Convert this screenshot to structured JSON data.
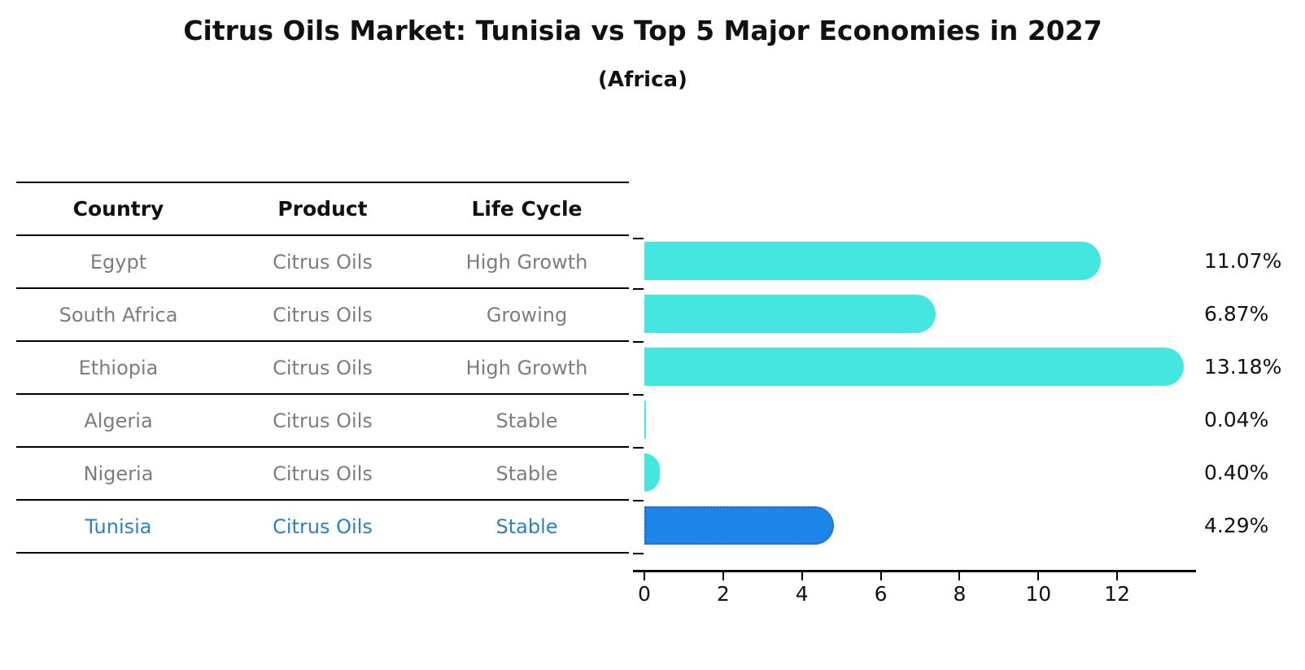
{
  "chart_data": {
    "type": "bar",
    "orientation": "horizontal",
    "title": "Citrus Oils Market: Tunisia vs Top 5 Major Economies in 2027",
    "subtitle": "(Africa)",
    "categories": [
      "Egypt",
      "South Africa",
      "Ethiopia",
      "Algeria",
      "Nigeria",
      "Tunisia"
    ],
    "values": [
      11.07,
      6.87,
      13.18,
      0.04,
      0.4,
      4.29
    ],
    "value_labels": [
      "11.07%",
      "6.87%",
      "13.18%",
      "0.04%",
      "0.40%",
      "4.29%"
    ],
    "xlabel": "",
    "ylabel": "",
    "xticks": [
      0,
      2,
      4,
      6,
      8,
      10,
      12
    ],
    "xtick_labels": [
      "0",
      "2",
      "4",
      "6",
      "8",
      "10",
      "12"
    ],
    "xlim": [
      0,
      14
    ],
    "grid": false,
    "legend": false,
    "highlight_index": 5,
    "highlighted_category": "Tunisia",
    "table": {
      "headers": [
        "Country",
        "Product",
        "Life Cycle"
      ],
      "rows": [
        {
          "country": "Egypt",
          "product": "Citrus Oils",
          "life_cycle": "High Growth"
        },
        {
          "country": "South Africa",
          "product": "Citrus Oils",
          "life_cycle": "Growing"
        },
        {
          "country": "Ethiopia",
          "product": "Citrus Oils",
          "life_cycle": "High Growth"
        },
        {
          "country": "Algeria",
          "product": "Citrus Oils",
          "life_cycle": "Stable"
        },
        {
          "country": "Nigeria",
          "product": "Citrus Oils",
          "life_cycle": "Stable"
        },
        {
          "country": "Tunisia",
          "product": "Citrus Oils",
          "life_cycle": "Stable"
        }
      ]
    }
  },
  "colors": {
    "bar": "#45e6df",
    "highlight_bar_fill": "#1e85e8",
    "highlight_bar_border": "#2a5fd0",
    "highlight_text": "#2c7fc4",
    "table_text": "#7d7d7d",
    "ink": "#111111"
  }
}
